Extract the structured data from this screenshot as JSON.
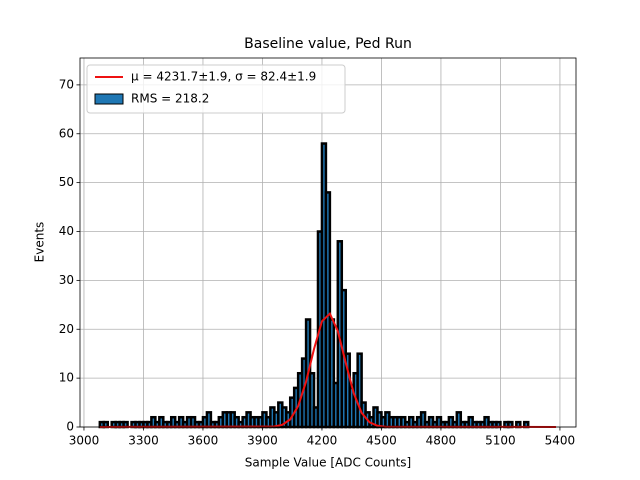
{
  "chart_data": {
    "type": "histogram",
    "title": "Baseline value, Ped Run",
    "xlabel": "Sample Value [ADC Counts]",
    "ylabel": "Events",
    "bins": [
      3080,
      3100,
      3120,
      3140,
      3160,
      3180,
      3200,
      3220,
      3240,
      3260,
      3280,
      3300,
      3320,
      3340,
      3360,
      3380,
      3400,
      3420,
      3440,
      3460,
      3480,
      3500,
      3520,
      3540,
      3560,
      3580,
      3600,
      3620,
      3640,
      3660,
      3680,
      3700,
      3720,
      3740,
      3760,
      3780,
      3800,
      3820,
      3840,
      3860,
      3880,
      3900,
      3920,
      3940,
      3960,
      3980,
      4000,
      4020,
      4040,
      4060,
      4080,
      4100,
      4120,
      4140,
      4160,
      4180,
      4200,
      4220,
      4240,
      4260,
      4280,
      4300,
      4320,
      4340,
      4360,
      4380,
      4400,
      4420,
      4440,
      4460,
      4480,
      4500,
      4520,
      4540,
      4560,
      4580,
      4600,
      4620,
      4640,
      4660,
      4680,
      4700,
      4720,
      4740,
      4760,
      4780,
      4800,
      4820,
      4840,
      4860,
      4880,
      4900,
      4920,
      4940,
      4960,
      4980,
      5000,
      5020,
      5040,
      5060,
      5080,
      5100,
      5120,
      5140,
      5160,
      5180,
      5200,
      5220,
      5240,
      5260,
      5280,
      5300,
      5320,
      5340,
      5360,
      5380
    ],
    "counts": [
      1,
      1,
      0,
      1,
      1,
      1,
      1,
      0,
      1,
      1,
      1,
      1,
      1,
      2,
      1,
      2,
      1,
      1,
      2,
      1,
      2,
      1,
      2,
      2,
      1,
      1,
      2,
      3,
      1,
      1,
      2,
      3,
      3,
      3,
      2,
      1,
      2,
      3,
      2,
      2,
      2,
      3,
      2,
      4,
      3,
      5,
      4,
      3,
      6,
      8,
      11,
      14,
      22,
      11,
      4,
      40,
      58,
      48,
      22,
      9,
      38,
      28,
      15,
      8,
      11,
      15,
      5,
      3,
      2,
      4,
      3,
      2,
      3,
      2,
      2,
      2,
      2,
      1,
      2,
      1,
      2,
      3,
      1,
      2,
      1,
      2,
      1,
      1,
      2,
      1,
      3,
      1,
      1,
      2,
      1,
      1,
      1,
      2,
      1,
      1,
      1,
      0,
      1,
      1,
      0,
      1,
      0,
      1,
      0,
      0,
      0,
      0,
      0,
      0,
      0
    ],
    "name": "RMS = 218.2",
    "color": "#1f77b4",
    "edgecolor": "#000000",
    "fit": {
      "name": "μ = 4231.7±1.9, σ = 82.4±1.9",
      "color": "#ee1111",
      "x": [
        3080,
        3960,
        4000,
        4040,
        4080,
        4120,
        4160,
        4200,
        4240,
        4280,
        4320,
        4360,
        4400,
        4440,
        4480,
        4520,
        5380
      ],
      "values": [
        0,
        0.1,
        0.44,
        1.56,
        4.28,
        9.3,
        15.96,
        21.64,
        23.18,
        19.62,
        13.13,
        6.93,
        2.89,
        0.96,
        0.25,
        0.05,
        0
      ]
    },
    "xlim": [
      2980,
      5481
    ],
    "ylim": [
      0,
      75.5
    ],
    "xticks": [
      3000,
      3300,
      3600,
      3900,
      4200,
      4500,
      4800,
      5100,
      5400
    ],
    "yticks": [
      0,
      10,
      20,
      30,
      40,
      50,
      60,
      70
    ],
    "grid": true,
    "legend": "upper left"
  }
}
